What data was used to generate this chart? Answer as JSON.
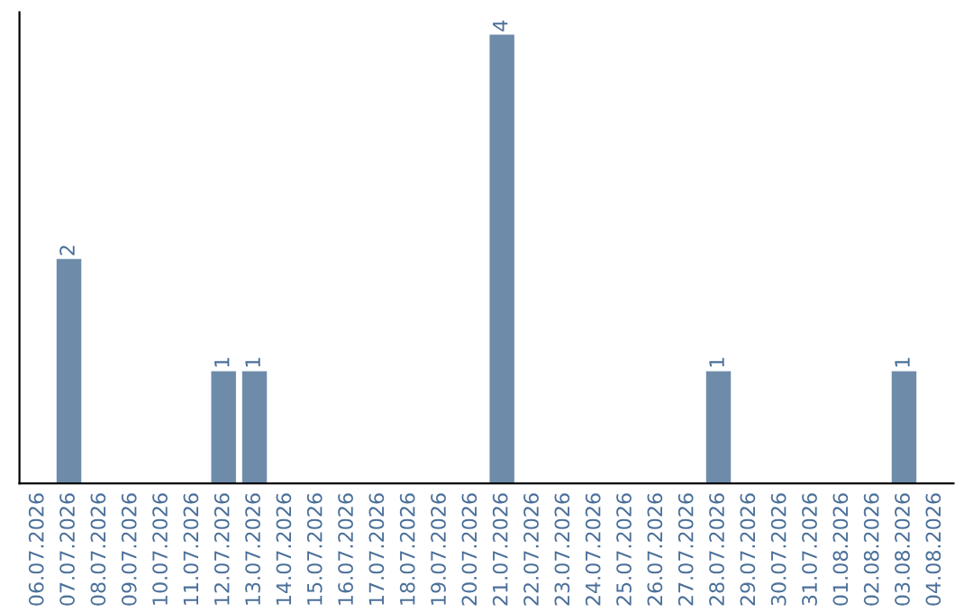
{
  "chart_data": {
    "type": "bar",
    "categories": [
      "06.07.2026",
      "07.07.2026",
      "08.07.2026",
      "09.07.2026",
      "10.07.2026",
      "11.07.2026",
      "12.07.2026",
      "13.07.2026",
      "14.07.2026",
      "15.07.2026",
      "16.07.2026",
      "17.07.2026",
      "18.07.2026",
      "19.07.2026",
      "20.07.2026",
      "21.07.2026",
      "22.07.2026",
      "23.07.2026",
      "24.07.2026",
      "25.07.2026",
      "26.07.2026",
      "27.07.2026",
      "28.07.2026",
      "29.07.2026",
      "30.07.2026",
      "31.07.2026",
      "01.08.2026",
      "02.08.2026",
      "03.08.2026",
      "04.08.2026"
    ],
    "values": [
      0,
      2,
      0,
      0,
      0,
      0,
      1,
      1,
      0,
      0,
      0,
      0,
      0,
      0,
      0,
      4,
      0,
      0,
      0,
      0,
      0,
      0,
      1,
      0,
      0,
      0,
      0,
      0,
      1,
      0
    ],
    "value_labels": [
      null,
      "2",
      null,
      null,
      null,
      null,
      "1",
      "1",
      null,
      null,
      null,
      null,
      null,
      null,
      null,
      "4",
      null,
      null,
      null,
      null,
      null,
      null,
      "1",
      null,
      null,
      null,
      null,
      null,
      "1",
      null
    ],
    "color": "#6e8caa",
    "grid": false,
    "legend": false
  }
}
